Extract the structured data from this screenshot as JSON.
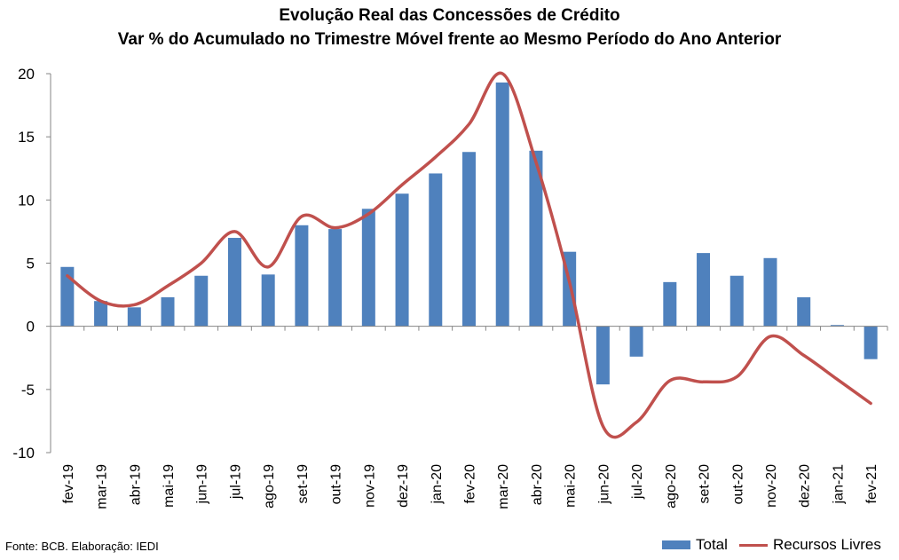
{
  "chart_data": {
    "type": "bar",
    "title": "Evolução Real das Concessões de Crédito",
    "subtitle": "Var % do Acumulado no Trimestre Móvel frente ao Mesmo Período do Ano Anterior",
    "categories": [
      "fev-19",
      "mar-19",
      "abr-19",
      "mai-19",
      "jun-19",
      "jul-19",
      "ago-19",
      "set-19",
      "out-19",
      "nov-19",
      "dez-19",
      "jan-20",
      "fev-20",
      "mar-20",
      "abr-20",
      "mai-20",
      "jun-20",
      "jul-20",
      "ago-20",
      "set-20",
      "out-20",
      "nov-20",
      "dez-20",
      "jan-21",
      "fev-21"
    ],
    "series": [
      {
        "name": "Total",
        "kind": "bar",
        "color": "#4f81bd",
        "values": [
          4.7,
          2.0,
          1.5,
          2.3,
          4.0,
          7.0,
          4.1,
          8.0,
          7.7,
          9.3,
          10.5,
          12.1,
          13.8,
          19.3,
          13.9,
          5.9,
          -4.6,
          -2.4,
          3.5,
          5.8,
          4.0,
          5.4,
          2.3,
          0.1,
          -2.6
        ]
      },
      {
        "name": "Recursos Livres",
        "kind": "line",
        "color": "#c0504d",
        "values": [
          4.0,
          2.0,
          1.7,
          3.2,
          5.0,
          7.5,
          4.7,
          8.7,
          7.8,
          8.9,
          11.2,
          13.4,
          16.0,
          20.0,
          13.0,
          3.5,
          -7.9,
          -7.6,
          -4.3,
          -4.4,
          -4.0,
          -0.8,
          -2.3,
          -4.2,
          -6.1
        ]
      }
    ],
    "ylim": [
      -10,
      20
    ],
    "yticks": [
      -10,
      -5,
      0,
      5,
      10,
      15,
      20
    ],
    "legend": "bottom-right",
    "grid": false
  },
  "footer": {
    "source": "Fonte: BCB. Elaboração: IEDI"
  },
  "legend_labels": {
    "total": "Total",
    "livres": "Recursos Livres"
  }
}
